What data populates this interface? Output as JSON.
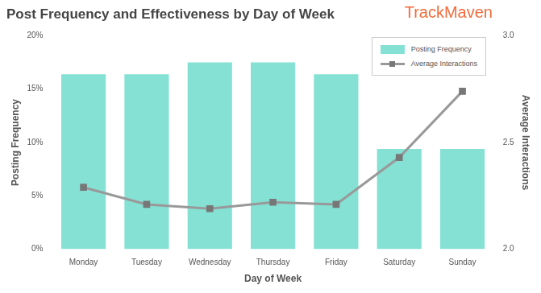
{
  "chart_data": {
    "type": "bar",
    "title": "Post Frequency and Effectiveness by Day of Week",
    "annotations": [
      "TrackMaven"
    ],
    "x_label": "Day of Week",
    "y_label": "Posting Frequency",
    "y2_label": "Average Interactions",
    "categories": [
      "Monday",
      "Tuesday",
      "Wednesday",
      "Thursday",
      "Friday",
      "Saturday",
      "Sunday"
    ],
    "series": [
      {
        "name": "Posting Frequency",
        "type": "bar",
        "color": "#84e1d4",
        "values": [
          16.4,
          16.4,
          17.5,
          17.5,
          16.4,
          9.4,
          9.4
        ]
      },
      {
        "name": "Average Interactions",
        "type": "line",
        "axis": "y2",
        "color": "#999999",
        "marker": "square",
        "line_style": "solid",
        "values": [
          2.29,
          2.21,
          2.19,
          2.22,
          2.21,
          2.43,
          2.74
        ]
      }
    ],
    "ylim": [
      0,
      20
    ],
    "yticks": [
      {
        "value": 0,
        "label": "0%"
      },
      {
        "value": 5,
        "label": "5%"
      },
      {
        "value": 10,
        "label": "10%"
      },
      {
        "value": 15,
        "label": "15%"
      },
      {
        "value": 20,
        "label": "20%"
      }
    ],
    "y2lim": [
      2,
      3
    ],
    "y2ticks": [
      {
        "value": 2,
        "label": "2.0"
      },
      {
        "value": 2.5,
        "label": "2.5"
      },
      {
        "value": 3,
        "label": "3.0"
      }
    ],
    "grid": false,
    "legend": "upper right"
  }
}
